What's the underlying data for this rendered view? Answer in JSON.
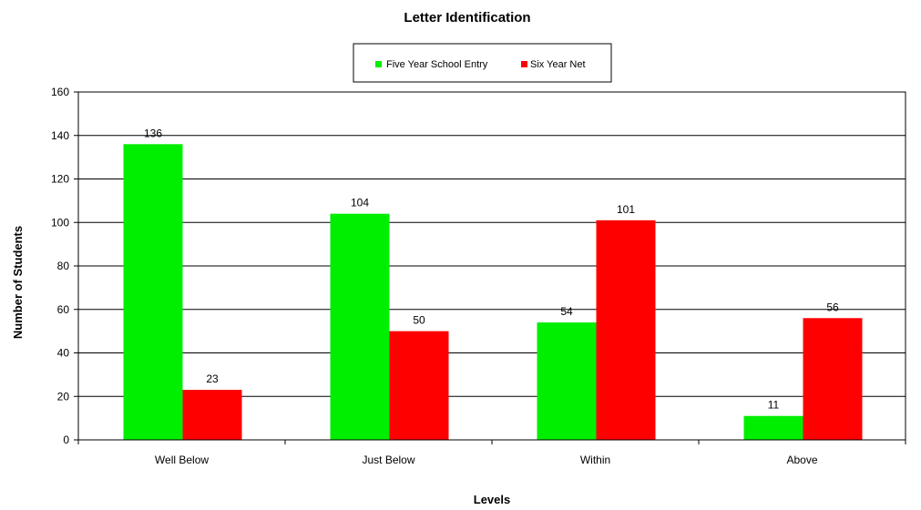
{
  "chart_data": {
    "type": "bar",
    "title": "Letter Identification",
    "xlabel": "Levels",
    "ylabel": "Number of Students",
    "categories": [
      "Well Below",
      "Just Below",
      "Within",
      "Above"
    ],
    "series": [
      {
        "name": "Five Year School Entry",
        "values": [
          136,
          104,
          54,
          11
        ],
        "color": "#00ee00"
      },
      {
        "name": "Six Year Net",
        "values": [
          23,
          50,
          101,
          56
        ],
        "color": "#ff0000"
      }
    ],
    "ylim": [
      0,
      160
    ],
    "yticks": [
      0,
      20,
      40,
      60,
      80,
      100,
      120,
      140,
      160
    ],
    "grid": true,
    "legend_position": "top"
  }
}
